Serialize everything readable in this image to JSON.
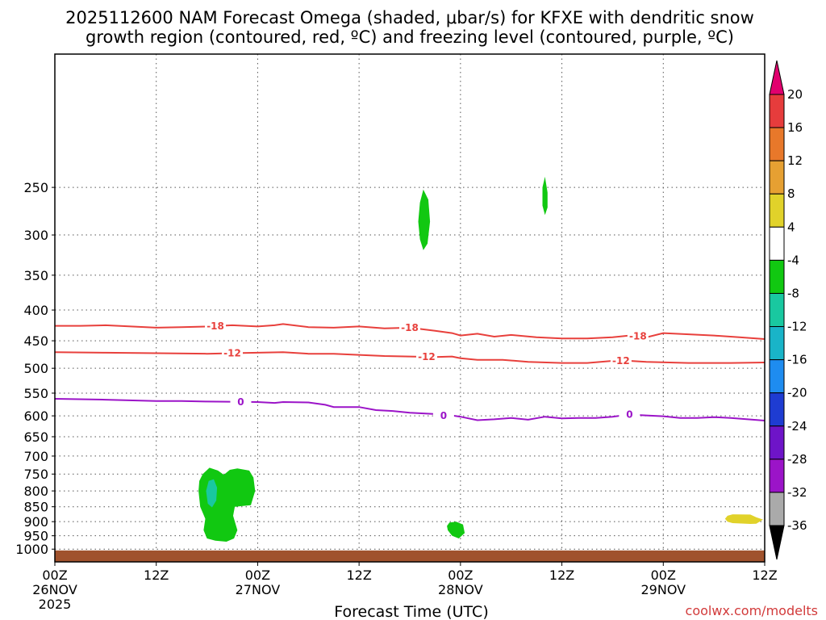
{
  "title_line1": "2025112600 NAM Forecast Omega (shaded, μbar/s) for KFXE with dendritic snow",
  "title_line2": "growth region (contoured, red, ºC) and freezing level (contoured, purple, ºC)",
  "xlabel": "Forecast Time (UTC)",
  "credit": "coolwx.com/modelts",
  "chart_data": {
    "type": "contour",
    "title": "2025112600 NAM Forecast Omega (shaded, μbar/s) for KFXE with dendritic snow growth region (contoured, red, ºC) and freezing level (contoured, purple, ºC)",
    "xlabel": "Forecast Time (UTC)",
    "ylabel": "",
    "x_unit": "hours since 2025-11-26 00Z",
    "xlim": [
      0,
      84
    ],
    "ylim": [
      1050,
      150
    ],
    "y_scale": "log-pressure",
    "grid": true,
    "x_ticks": [
      {
        "hour": 0,
        "line1": "00Z",
        "line2": "26NOV",
        "line3": "2025"
      },
      {
        "hour": 12,
        "line1": "12Z",
        "line2": "",
        "line3": ""
      },
      {
        "hour": 24,
        "line1": "00Z",
        "line2": "27NOV",
        "line3": ""
      },
      {
        "hour": 36,
        "line1": "12Z",
        "line2": "",
        "line3": ""
      },
      {
        "hour": 48,
        "line1": "00Z",
        "line2": "28NOV",
        "line3": ""
      },
      {
        "hour": 60,
        "line1": "12Z",
        "line2": "",
        "line3": ""
      },
      {
        "hour": 72,
        "line1": "00Z",
        "line2": "29NOV",
        "line3": ""
      },
      {
        "hour": 84,
        "line1": "12Z",
        "line2": "",
        "line3": ""
      }
    ],
    "y_ticks": [
      250,
      300,
      350,
      400,
      450,
      500,
      550,
      600,
      650,
      700,
      750,
      800,
      850,
      900,
      950,
      1000
    ],
    "contours": [
      {
        "name": "-18",
        "color": "#e8403c",
        "label_positions": [
          19,
          42,
          69
        ],
        "points": [
          [
            0,
            425
          ],
          [
            3,
            425
          ],
          [
            6,
            424
          ],
          [
            9,
            426
          ],
          [
            12,
            428
          ],
          [
            15,
            427
          ],
          [
            18,
            426
          ],
          [
            21,
            424
          ],
          [
            24,
            426
          ],
          [
            26,
            424
          ],
          [
            27,
            422
          ],
          [
            30,
            427
          ],
          [
            33,
            428
          ],
          [
            36,
            426
          ],
          [
            39,
            429
          ],
          [
            42,
            428
          ],
          [
            45,
            433
          ],
          [
            47,
            437
          ],
          [
            48,
            441
          ],
          [
            50,
            438
          ],
          [
            52,
            443
          ],
          [
            54,
            440
          ],
          [
            57,
            444
          ],
          [
            60,
            446
          ],
          [
            63,
            446
          ],
          [
            66,
            444
          ],
          [
            68,
            441
          ],
          [
            70,
            444
          ],
          [
            72,
            437
          ],
          [
            75,
            439
          ],
          [
            78,
            441
          ],
          [
            81,
            444
          ],
          [
            84,
            447
          ]
        ]
      },
      {
        "name": "-12",
        "color": "#e8403c",
        "label_positions": [
          21,
          44,
          67
        ],
        "points": [
          [
            0,
            470
          ],
          [
            6,
            471
          ],
          [
            12,
            472
          ],
          [
            18,
            473
          ],
          [
            21,
            472
          ],
          [
            24,
            471
          ],
          [
            27,
            470
          ],
          [
            30,
            473
          ],
          [
            33,
            473
          ],
          [
            36,
            475
          ],
          [
            39,
            477
          ],
          [
            42,
            478
          ],
          [
            45,
            479
          ],
          [
            47,
            478
          ],
          [
            48,
            481
          ],
          [
            50,
            484
          ],
          [
            53,
            484
          ],
          [
            56,
            488
          ],
          [
            60,
            490
          ],
          [
            63,
            490
          ],
          [
            66,
            486
          ],
          [
            68,
            486
          ],
          [
            70,
            488
          ],
          [
            75,
            490
          ],
          [
            80,
            490
          ],
          [
            84,
            489
          ]
        ]
      },
      {
        "name": "0",
        "color": "#9b14c8",
        "label_positions": [
          22,
          46,
          68
        ],
        "points": [
          [
            0,
            562
          ],
          [
            6,
            564
          ],
          [
            12,
            567
          ],
          [
            15,
            567
          ],
          [
            18,
            568
          ],
          [
            24,
            569
          ],
          [
            26,
            571
          ],
          [
            27,
            569
          ],
          [
            30,
            570
          ],
          [
            32,
            575
          ],
          [
            33,
            580
          ],
          [
            36,
            580
          ],
          [
            38,
            587
          ],
          [
            40,
            589
          ],
          [
            42,
            593
          ],
          [
            45,
            596
          ],
          [
            46,
            600
          ],
          [
            47,
            599
          ],
          [
            48,
            602
          ],
          [
            50,
            610
          ],
          [
            52,
            608
          ],
          [
            54,
            605
          ],
          [
            56,
            609
          ],
          [
            58,
            602
          ],
          [
            60,
            606
          ],
          [
            62,
            605
          ],
          [
            64,
            605
          ],
          [
            66,
            602
          ],
          [
            68,
            597
          ],
          [
            70,
            599
          ],
          [
            72,
            601
          ],
          [
            74,
            605
          ],
          [
            76,
            605
          ],
          [
            78,
            603
          ],
          [
            80,
            605
          ],
          [
            82,
            608
          ],
          [
            84,
            611
          ]
        ]
      }
    ],
    "shaded_regions": [
      {
        "name": "omega -8 to -4",
        "color": "#11c811",
        "points": [
          [
            17.5,
            750
          ],
          [
            18.3,
            732
          ],
          [
            19.3,
            740
          ],
          [
            20.0,
            752
          ],
          [
            20.7,
            738
          ],
          [
            21.6,
            734
          ],
          [
            23.0,
            740
          ],
          [
            23.5,
            760
          ],
          [
            23.7,
            800
          ],
          [
            23.2,
            845
          ],
          [
            21.3,
            850
          ],
          [
            21.1,
            880
          ],
          [
            21.6,
            930
          ],
          [
            21.2,
            960
          ],
          [
            20.3,
            972
          ],
          [
            19.0,
            968
          ],
          [
            18.0,
            960
          ],
          [
            17.6,
            930
          ],
          [
            17.8,
            890
          ],
          [
            17.2,
            850
          ],
          [
            17.0,
            800
          ],
          [
            17.1,
            770
          ]
        ]
      },
      {
        "name": "omega -12 to -8",
        "color": "#19c8a0",
        "points": [
          [
            18.2,
            770
          ],
          [
            18.8,
            765
          ],
          [
            19.2,
            790
          ],
          [
            19.1,
            830
          ],
          [
            18.6,
            852
          ],
          [
            18.1,
            840
          ],
          [
            17.9,
            800
          ]
        ]
      },
      {
        "name": "omega -8 to -4",
        "color": "#11c811",
        "points": [
          [
            43.6,
            252
          ],
          [
            44.2,
            262
          ],
          [
            44.4,
            285
          ],
          [
            44.1,
            310
          ],
          [
            43.6,
            318
          ],
          [
            43.2,
            305
          ],
          [
            43.0,
            285
          ],
          [
            43.2,
            265
          ]
        ]
      },
      {
        "name": "omega -8 to -4",
        "color": "#11c811",
        "points": [
          [
            58.0,
            240
          ],
          [
            58.3,
            255
          ],
          [
            58.3,
            270
          ],
          [
            58.0,
            278
          ],
          [
            57.7,
            268
          ],
          [
            57.7,
            250
          ]
        ]
      },
      {
        "name": "omega -8 to -4",
        "color": "#11c811",
        "points": [
          [
            46.7,
            903
          ],
          [
            47.5,
            900
          ],
          [
            48.3,
            910
          ],
          [
            48.5,
            940
          ],
          [
            47.8,
            960
          ],
          [
            47.0,
            950
          ],
          [
            46.5,
            930
          ],
          [
            46.4,
            915
          ]
        ]
      },
      {
        "name": "omega 4 to 8",
        "color": "#e1d22a",
        "points": [
          [
            79.6,
            880
          ],
          [
            80.2,
            875
          ],
          [
            82.3,
            876
          ],
          [
            83.0,
            885
          ],
          [
            83.8,
            893
          ],
          [
            83.0,
            907
          ],
          [
            82.3,
            908
          ],
          [
            80.2,
            905
          ],
          [
            79.6,
            900
          ],
          [
            79.3,
            890
          ]
        ]
      }
    ],
    "terrain": {
      "name": "surface",
      "color": "#a0522d",
      "top_pressure": 1005
    },
    "colorbar": {
      "ticks": [
        "20",
        "16",
        "12",
        "8",
        "4",
        "-4",
        "-8",
        "-12",
        "-16",
        "-20",
        "-24",
        "-28",
        "-32",
        "-36"
      ],
      "colors": [
        "#e1006e",
        "#e63c3c",
        "#e8782a",
        "#e6a032",
        "#e1d22a",
        "#ffffff",
        "#11c811",
        "#19c8a0",
        "#19b4c8",
        "#1e8cf0",
        "#1e3cd2",
        "#6e14c8",
        "#9b14c8",
        "#aaaaaa",
        "#000000"
      ]
    }
  }
}
